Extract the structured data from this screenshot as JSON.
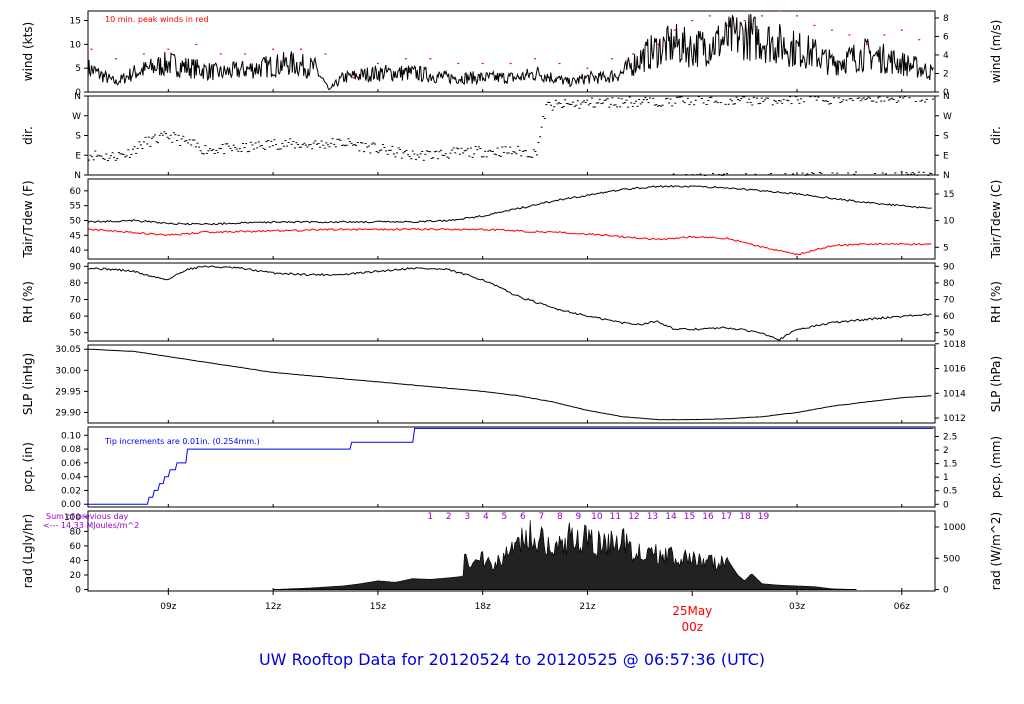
{
  "title": "UW Rooftop Data for 20120524  to  20120525 @ 06:57:36  (UTC)",
  "date_marker": {
    "day": "25May",
    "hour": "00z"
  },
  "colors": {
    "black": "#000000",
    "red": "#ff0000",
    "blue": "#0000ff",
    "purple": "#9900cc",
    "title_blue": "#0000dd"
  },
  "chart_data": [
    {
      "type": "line",
      "name": "wind",
      "ylabel": "wind (kts)",
      "ylabel_right": "wind (m/s)",
      "ylim": [
        0,
        17
      ],
      "yticks": [
        "0",
        "5",
        "10",
        "15"
      ],
      "ytick_values": [
        0,
        5,
        10,
        15
      ],
      "right_ylim": [
        0,
        8.75
      ],
      "right_yticks": [
        "0",
        "2",
        "4",
        "6",
        "8"
      ],
      "right_ytick_values": [
        0,
        2,
        4,
        6,
        8
      ],
      "annotation": "10 min. peak winds in red",
      "x_hours": [
        6.7,
        7.5,
        8.0,
        8.5,
        9.0,
        9.7,
        10.5,
        11.5,
        12.5,
        13.2,
        13.6,
        14.0,
        15.0,
        16.0,
        17.0,
        18.0,
        19.0,
        19.6,
        20.0,
        20.5,
        21.0,
        21.5,
        22.0,
        22.5,
        23.0,
        23.5,
        24.0,
        24.5,
        25.0,
        25.5,
        26.0,
        26.5,
        27.0,
        27.5,
        28.0,
        28.5,
        29.0,
        29.5,
        30.0,
        30.5,
        30.9
      ],
      "values": [
        5,
        2,
        4,
        5,
        6,
        5,
        4,
        5,
        6,
        5,
        0.5,
        3,
        4,
        4,
        3,
        3,
        3,
        4,
        3,
        2,
        3,
        3,
        4,
        7,
        9,
        10,
        9,
        10,
        11,
        12,
        11,
        10,
        9,
        8,
        6,
        7,
        8,
        7,
        6,
        5,
        4
      ],
      "peaks_x": [
        6.8,
        7.5,
        8.3,
        9.0,
        9.8,
        10.5,
        11.2,
        12.0,
        12.8,
        13.5,
        14.3,
        15.0,
        15.8,
        16.5,
        17.3,
        18.0,
        18.8,
        19.5,
        20.2,
        21.0,
        21.7,
        22.3,
        23.0,
        23.5,
        24.0,
        24.5,
        25.0,
        25.5,
        26.0,
        26.5,
        27.0,
        27.5,
        28.0,
        28.5,
        29.0,
        29.5,
        30.0,
        30.5
      ],
      "peaks": [
        9,
        7,
        8,
        9,
        10,
        8,
        8,
        9,
        9,
        8,
        3,
        6,
        7,
        7,
        6,
        6,
        6,
        7,
        6,
        5,
        7,
        8,
        10,
        13,
        15,
        16,
        14,
        15,
        16,
        17,
        16,
        14,
        13,
        12,
        10,
        12,
        13,
        11
      ]
    },
    {
      "type": "scatter",
      "name": "dir",
      "ylabel": "dir.",
      "yticks": [
        "N",
        "E",
        "S",
        "W",
        "N"
      ],
      "ytick_values": [
        0,
        90,
        180,
        270,
        360
      ],
      "ylim": [
        0,
        360
      ],
      "x_hours": [
        6.8,
        7.3,
        7.8,
        8.3,
        9.0,
        10.0,
        11.0,
        12.0,
        13.0,
        14.0,
        15.0,
        16.0,
        17.0,
        18.0,
        19.0,
        19.5,
        19.8,
        20.2,
        21.0,
        22.0,
        23.0,
        24.0,
        25.0,
        26.0,
        27.0,
        28.0,
        29.0,
        30.0,
        30.9
      ],
      "values": [
        95,
        85,
        100,
        150,
        180,
        120,
        120,
        145,
        140,
        150,
        120,
        90,
        100,
        110,
        110,
        100,
        315,
        320,
        330,
        335,
        340,
        345,
        345,
        345,
        350,
        350,
        355,
        355,
        355
      ]
    },
    {
      "type": "line",
      "name": "temp",
      "ylabel": "Tair/Tdew (F)",
      "ylabel_right": "Tair/Tdew (C)",
      "ylim": [
        37,
        64
      ],
      "yticks": [
        "40",
        "45",
        "50",
        "55",
        "60"
      ],
      "ytick_values": [
        40,
        45,
        50,
        55,
        60
      ],
      "right_ylim": [
        2.8,
        17.8
      ],
      "right_yticks": [
        "5",
        "10",
        "15"
      ],
      "right_ytick_values": [
        5,
        10,
        15
      ],
      "x_hours": [
        6.7,
        8.0,
        9.0,
        10.0,
        12.0,
        14.0,
        16.0,
        17.0,
        18.0,
        19.0,
        20.0,
        21.0,
        22.0,
        23.0,
        24.0,
        25.0,
        26.0,
        27.0,
        28.0,
        29.0,
        30.0,
        30.9
      ],
      "series": [
        {
          "color": "#000000",
          "values": [
            49.5,
            50,
            49,
            48.7,
            49.5,
            49.5,
            49.5,
            50,
            51.5,
            54,
            56.5,
            58.5,
            60.5,
            61.5,
            61.5,
            61,
            60,
            59,
            57.5,
            56,
            55,
            54
          ]
        },
        {
          "color": "#ff0000",
          "values": [
            47,
            46,
            45,
            46,
            46.5,
            47,
            47,
            47,
            47,
            46.5,
            46,
            45.5,
            44.5,
            43.5,
            44.5,
            44,
            41,
            38.5,
            41.5,
            42,
            42,
            42
          ]
        }
      ]
    },
    {
      "type": "line",
      "name": "rh",
      "ylabel": "RH (%)",
      "ylabel_right": "RH (%)",
      "ylim": [
        45,
        92
      ],
      "yticks": [
        "50",
        "60",
        "70",
        "80",
        "90"
      ],
      "ytick_values": [
        50,
        60,
        70,
        80,
        90
      ],
      "x_hours": [
        6.7,
        7.5,
        8.0,
        8.5,
        9.0,
        9.5,
        10.0,
        11.0,
        12.0,
        13.0,
        14.0,
        15.0,
        16.0,
        17.0,
        18.0,
        19.0,
        20.0,
        21.0,
        22.0,
        22.5,
        23.0,
        23.5,
        24.0,
        25.0,
        26.0,
        26.5,
        27.0,
        28.0,
        29.0,
        30.0,
        30.9
      ],
      "values": [
        89,
        88,
        87,
        84,
        82,
        88,
        90,
        89,
        86,
        85,
        85,
        87,
        89,
        88,
        82,
        72,
        65,
        60,
        56,
        55,
        57,
        52,
        52,
        53,
        50,
        46,
        52,
        56,
        58,
        60,
        61
      ]
    },
    {
      "type": "line",
      "name": "slp",
      "ylabel": "SLP (inHg)",
      "ylabel_right": "SLP (hPa)",
      "ylim": [
        29.875,
        30.06
      ],
      "yticks": [
        "29.90",
        "29.95",
        "30.00",
        "30.05"
      ],
      "ytick_values": [
        29.9,
        29.95,
        30.0,
        30.05
      ],
      "right_ylim": [
        1011.6,
        1017.9
      ],
      "right_yticks": [
        "1012",
        "1014",
        "1016",
        "1018"
      ],
      "right_ytick_values": [
        1012,
        1014,
        1016,
        1018
      ],
      "x_hours": [
        6.7,
        8.0,
        10.0,
        12.0,
        14.0,
        16.0,
        18.0,
        19.0,
        20.0,
        21.0,
        22.0,
        23.0,
        24.0,
        25.0,
        26.0,
        27.0,
        28.0,
        29.0,
        30.0,
        30.9
      ],
      "values": [
        30.05,
        30.045,
        30.02,
        29.995,
        29.98,
        29.965,
        29.95,
        29.94,
        29.925,
        29.905,
        29.89,
        29.883,
        29.883,
        29.885,
        29.89,
        29.9,
        29.915,
        29.925,
        29.935,
        29.94
      ]
    },
    {
      "type": "line",
      "name": "pcp",
      "ylabel": "pcp. (in)",
      "ylabel_right": "pcp. (mm)",
      "ylim": [
        -0.004,
        0.112
      ],
      "yticks": [
        "0.00",
        "0.02",
        "0.04",
        "0.06",
        "0.08",
        "0.10"
      ],
      "ytick_values": [
        0,
        0.02,
        0.04,
        0.06,
        0.08,
        0.1
      ],
      "right_ylim": [
        -0.1,
        2.85
      ],
      "right_yticks": [
        "0",
        "0.5",
        "1",
        "1.5",
        "2",
        "2.5"
      ],
      "right_ytick_values": [
        0,
        0.5,
        1,
        1.5,
        2,
        2.5
      ],
      "annotation": "Tip increments are 0.01in. (0.254mm.)",
      "x_hours": [
        6.7,
        8.4,
        8.45,
        8.55,
        8.6,
        8.7,
        8.75,
        8.85,
        8.9,
        9.0,
        9.05,
        9.2,
        9.25,
        9.5,
        9.55,
        14.2,
        14.25,
        16.0,
        16.05,
        30.9
      ],
      "values": [
        0,
        0,
        0.01,
        0.01,
        0.02,
        0.02,
        0.03,
        0.03,
        0.04,
        0.04,
        0.05,
        0.05,
        0.06,
        0.06,
        0.08,
        0.08,
        0.09,
        0.09,
        0.11,
        0.11
      ]
    },
    {
      "type": "area",
      "name": "rad",
      "ylabel": "rad (Lgly/hr)",
      "ylabel_right": "rad (W/m^2)",
      "ylim": [
        -2,
        108
      ],
      "yticks": [
        "0",
        "20",
        "40",
        "60",
        "80",
        "100"
      ],
      "ytick_values": [
        0,
        20,
        40,
        60,
        80,
        100
      ],
      "right_ylim": [
        -23,
        1255
      ],
      "right_yticks": [
        "0",
        "500",
        "1000"
      ],
      "right_ytick_values": [
        0,
        500,
        1000
      ],
      "annotation_lines": [
        "Sum of previous day",
        "<--- 14.33 MJoules/m^2"
      ],
      "hour_markers": [
        "1",
        "2",
        "3",
        "4",
        "5",
        "6",
        "7",
        "8",
        "9",
        "10",
        "11",
        "12",
        "13",
        "14",
        "15",
        "16",
        "17",
        "18",
        "19"
      ],
      "x_hours": [
        12.0,
        13.0,
        14.0,
        14.5,
        15.0,
        15.5,
        16.0,
        16.5,
        17.0,
        17.4,
        17.5,
        17.7,
        18.0,
        18.5,
        19.0,
        19.5,
        20.0,
        20.5,
        21.0,
        21.5,
        22.0,
        22.5,
        23.0,
        23.5,
        24.0,
        24.5,
        25.0,
        25.3,
        25.5,
        25.7,
        26.0,
        26.5,
        27.0,
        27.5,
        28.0,
        28.7
      ],
      "values": [
        0,
        2,
        5,
        8,
        12,
        10,
        15,
        14,
        16,
        18,
        60,
        40,
        55,
        45,
        80,
        95,
        70,
        85,
        80,
        75,
        80,
        62,
        58,
        55,
        48,
        45,
        42,
        20,
        12,
        22,
        8,
        6,
        5,
        4,
        1,
        0
      ]
    }
  ],
  "x_axis": {
    "tick_labels": [
      "09z",
      "12z",
      "15z",
      "18z",
      "21z",
      "03z",
      "06z"
    ],
    "tick_hours": [
      9,
      12,
      15,
      18,
      21,
      27,
      30
    ]
  }
}
